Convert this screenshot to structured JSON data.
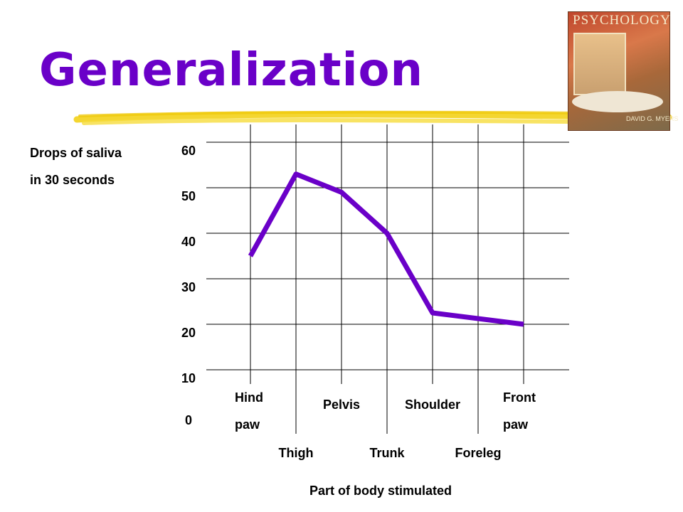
{
  "slide": {
    "title": "Generalization",
    "book_cover": {
      "title": "PSYCHOLOGY",
      "author": "DAVID G. MYERS"
    }
  },
  "chart_data": {
    "type": "line",
    "title": "Generalization",
    "ylabel": "Drops of saliva\nin 30 seconds",
    "xlabel": "Part of body stimulated",
    "ylim": [
      0,
      60
    ],
    "yticks": [
      0,
      10,
      20,
      30,
      40,
      50,
      60
    ],
    "grid": true,
    "categories": [
      "Hind paw",
      "Thigh",
      "Pelvis",
      "Trunk",
      "Shoulder",
      "Foreleg",
      "Front paw"
    ],
    "category_label_lines": [
      [
        "Hind",
        "paw"
      ],
      [
        "Thigh"
      ],
      [
        "Pelvis"
      ],
      [
        "Trunk"
      ],
      [
        "Shoulder"
      ],
      [
        "Foreleg"
      ],
      [
        "Front",
        "paw"
      ]
    ],
    "series": [
      {
        "values": [
          35,
          53,
          49,
          40,
          22.5,
          null,
          20
        ],
        "color": "#6a00c8"
      }
    ]
  },
  "colors": {
    "title": "#6a00c8",
    "line": "#6a00c8",
    "highlighter": "#f3d21a"
  }
}
